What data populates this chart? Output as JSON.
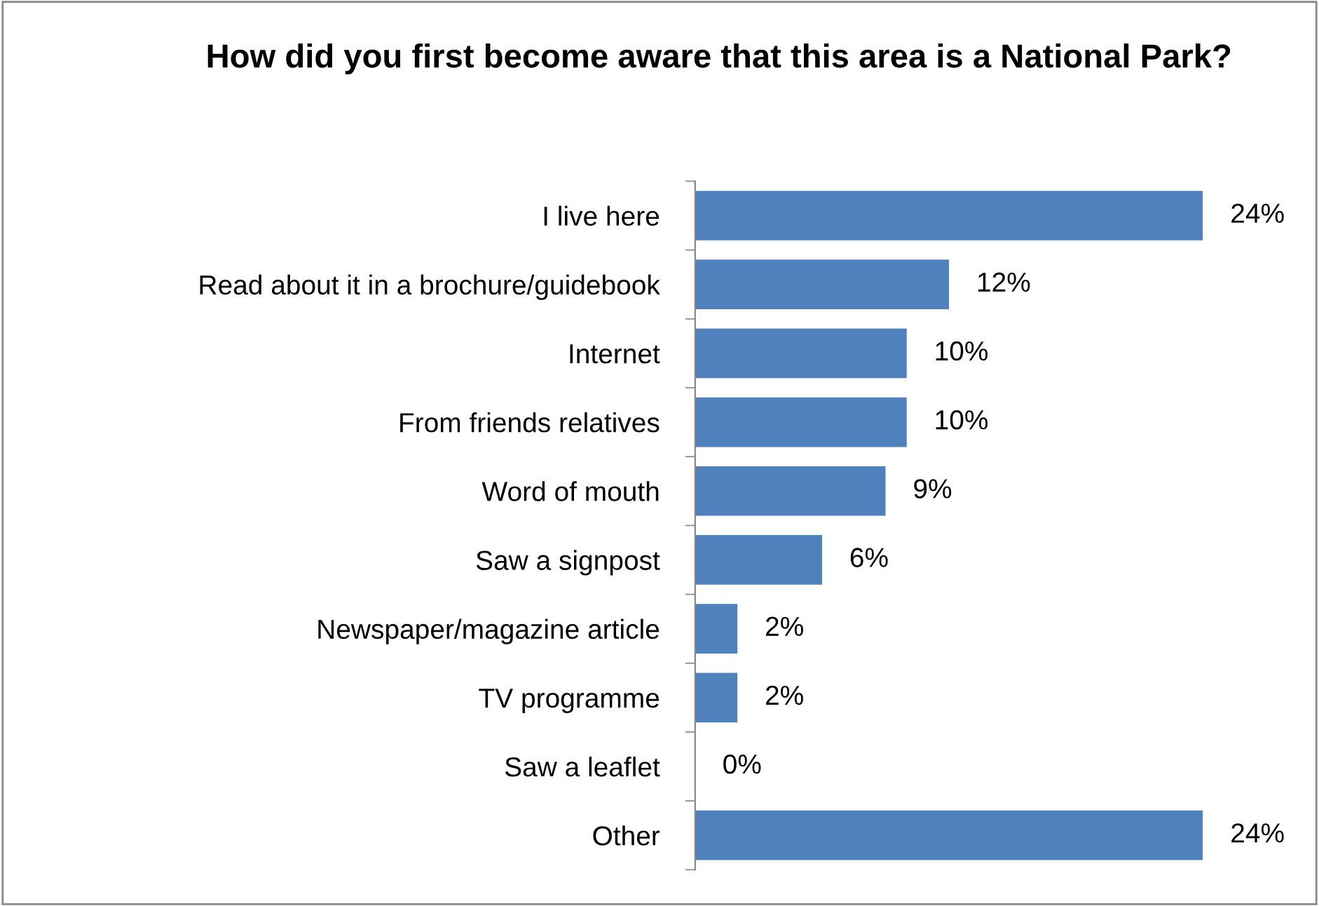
{
  "chart_data": {
    "type": "bar",
    "orientation": "horizontal",
    "title": "How did you first become aware that this area is a National Park?",
    "categories": [
      "I live here",
      "Read about it in a brochure/guidebook",
      "Internet",
      "From friends relatives",
      "Word of mouth",
      "Saw a signpost",
      "Newspaper/magazine article",
      "TV programme",
      "Saw a leaflet",
      "Other"
    ],
    "values": [
      24,
      12,
      10,
      10,
      9,
      6,
      2,
      2,
      0,
      24
    ],
    "value_labels": [
      "24%",
      "12%",
      "10%",
      "10%",
      "9%",
      "6%",
      "2%",
      "2%",
      "0%",
      "24%"
    ],
    "color": "#4f81bd",
    "grid": false,
    "legend": false
  }
}
